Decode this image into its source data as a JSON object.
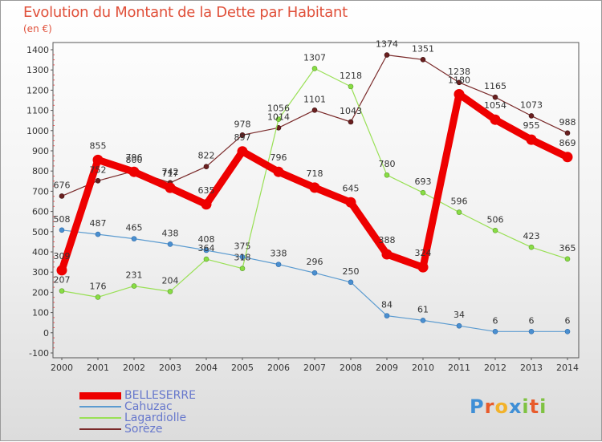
{
  "title": "Evolution du Montant de la Dette par Habitant",
  "subtitle": "(en €)",
  "logo_text": "Proxiti",
  "chart_data": {
    "type": "line",
    "title": "Evolution du Montant de la Dette par Habitant",
    "ylabel": "(en €)",
    "x": [
      2000,
      2001,
      2002,
      2003,
      2004,
      2005,
      2006,
      2007,
      2008,
      2009,
      2010,
      2011,
      2012,
      2013,
      2014
    ],
    "ylim": [
      -100,
      1400
    ],
    "yticks": [
      -100,
      0,
      100,
      200,
      300,
      400,
      500,
      600,
      700,
      800,
      900,
      1000,
      1100,
      1200,
      1300,
      1400
    ],
    "grid": false,
    "legend_position": "bottom-left",
    "series": [
      {
        "name": "BELLESERRE",
        "color": "#ee0000",
        "values": [
          309,
          855,
          796,
          717,
          635,
          897,
          796,
          718,
          645,
          388,
          324,
          1180,
          1054,
          955,
          869
        ]
      },
      {
        "name": "Cahuzac",
        "color": "#5b9bd0",
        "values": [
          508,
          487,
          465,
          438,
          408,
          375,
          338,
          296,
          250,
          84,
          61,
          34,
          6,
          6,
          6
        ]
      },
      {
        "name": "Lagardiolle",
        "color": "#99e055",
        "values": [
          207,
          176,
          231,
          204,
          364,
          318,
          1056,
          1307,
          1218,
          780,
          693,
          596,
          506,
          423,
          365
        ]
      },
      {
        "name": "Sorèze",
        "color": "#7a2a2a",
        "values": [
          676,
          752,
          800,
          742,
          822,
          978,
          1014,
          1101,
          1043,
          1374,
          1351,
          1238,
          1165,
          1073,
          988
        ]
      }
    ]
  }
}
